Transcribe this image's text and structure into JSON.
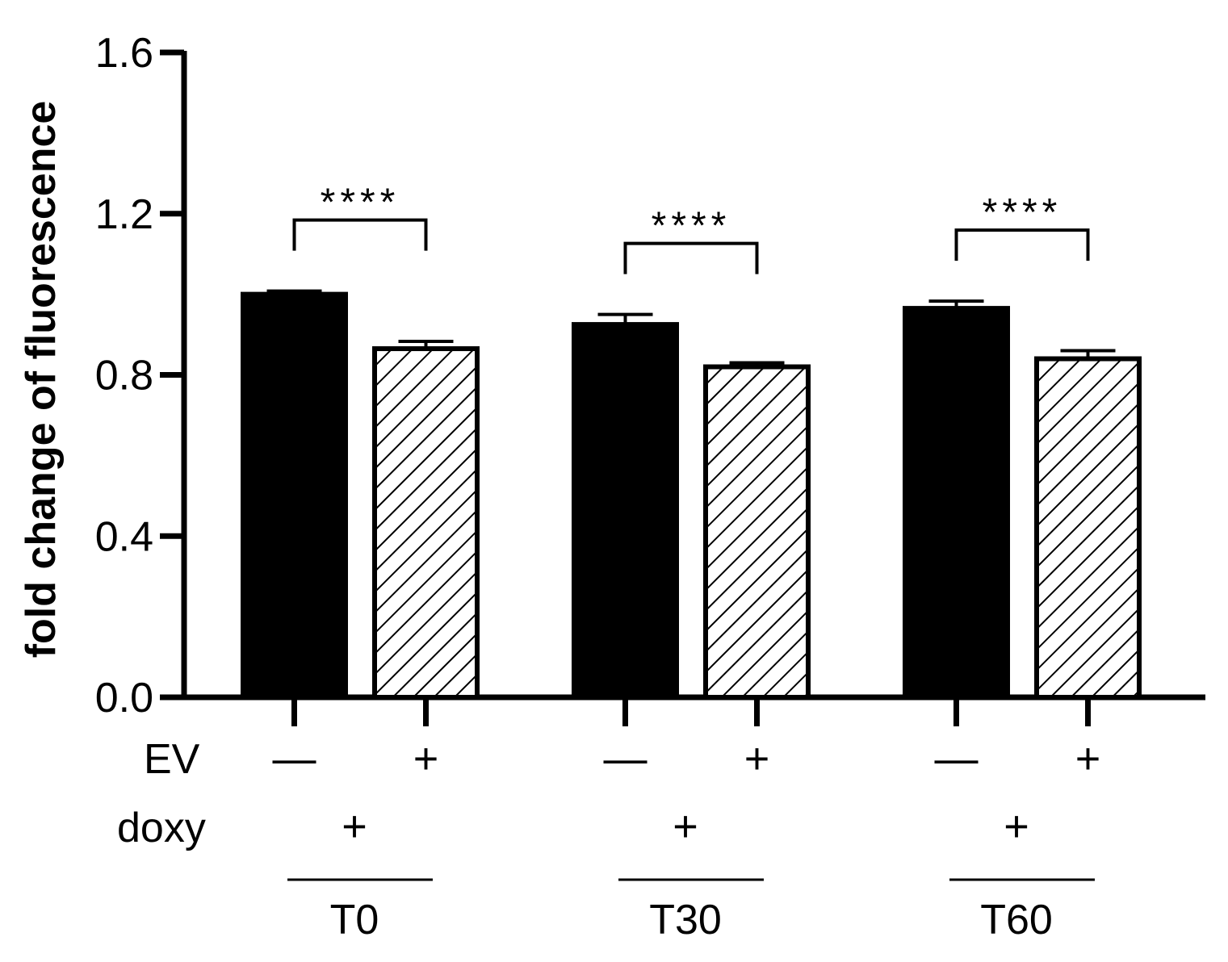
{
  "chart_data": {
    "type": "bar",
    "title": "",
    "ylabel": "fold change of fluorescence",
    "xlabel": "",
    "ylim": [
      0,
      1.6
    ],
    "yticks": [
      "0.0",
      "0.4",
      "0.8",
      "1.2",
      "1.6"
    ],
    "groups": [
      "T0",
      "T30",
      "T60"
    ],
    "series": [
      {
        "name": "EV −",
        "ev": "—",
        "fill": "solid",
        "values": [
          1.0,
          0.925,
          0.965
        ],
        "errors": [
          0.008,
          0.025,
          0.018
        ]
      },
      {
        "name": "EV +",
        "ev": "+",
        "fill": "hatched",
        "values": [
          0.865,
          0.82,
          0.84
        ],
        "errors": [
          0.018,
          0.01,
          0.02
        ]
      }
    ],
    "row_labels": {
      "ev": "EV",
      "doxy": "doxy"
    },
    "doxy_values": [
      "+",
      "+",
      "+"
    ],
    "significance": [
      "****",
      "****",
      "****"
    ],
    "colors": {
      "solid": "#000000",
      "hatch": "#000000",
      "background": "#ffffff"
    }
  }
}
